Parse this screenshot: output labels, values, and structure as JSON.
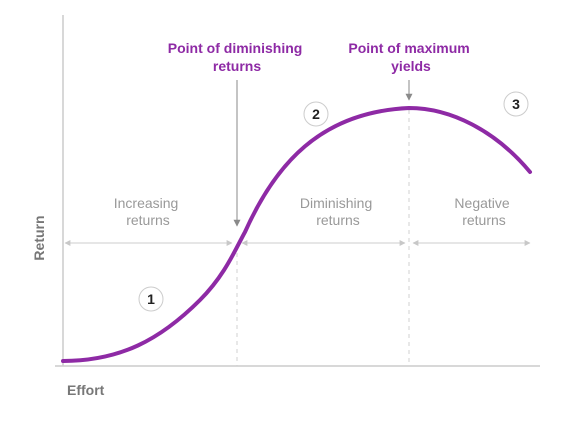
{
  "axes": {
    "x_label": "Effort",
    "y_label": "Return"
  },
  "annotations": {
    "diminishing_point": [
      "Point of diminishing",
      "returns"
    ],
    "max_yield_point": [
      "Point of maximum",
      "yields"
    ]
  },
  "zones": [
    {
      "lines": [
        "Increasing",
        "returns"
      ]
    },
    {
      "lines": [
        "Diminishing",
        "returns"
      ]
    },
    {
      "lines": [
        "Negative",
        "returns"
      ]
    }
  ],
  "markers": [
    "1",
    "2",
    "3"
  ],
  "colors": {
    "curve": "#8e2aa5",
    "axis": "#cccccc",
    "guide": "#cfcfcf",
    "text_gray": "#999999"
  }
}
